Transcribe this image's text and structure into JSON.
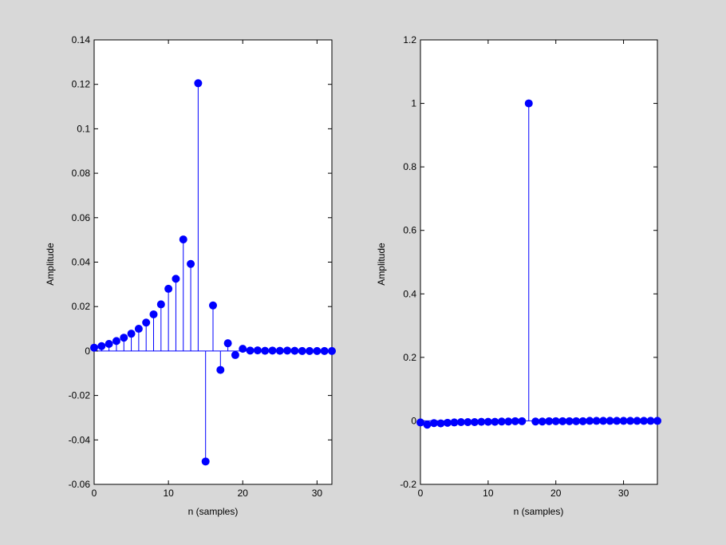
{
  "chart_data": [
    {
      "type": "stem",
      "title": "",
      "xlabel": "n (samples)",
      "ylabel": "Amplitude",
      "xlim": [
        0,
        32
      ],
      "ylim": [
        -0.06,
        0.14
      ],
      "xticks": [
        0,
        10,
        20,
        30
      ],
      "yticks": [
        -0.06,
        -0.04,
        -0.02,
        0,
        0.02,
        0.04,
        0.06,
        0.08,
        0.1,
        0.12,
        0.14
      ],
      "xtick_labels": [
        "0",
        "10",
        "20",
        "30"
      ],
      "ytick_labels": [
        "-0.06",
        "-0.04",
        "-0.02",
        "0",
        "0.02",
        "0.04",
        "0.06",
        "0.08",
        "0.1",
        "0.12",
        "0.14"
      ],
      "x": [
        0,
        1,
        2,
        3,
        4,
        5,
        6,
        7,
        8,
        9,
        10,
        11,
        12,
        13,
        14,
        15,
        16,
        17,
        18,
        19,
        20,
        21,
        22,
        23,
        24,
        25,
        26,
        27,
        28,
        29,
        30,
        31,
        32
      ],
      "y": [
        0.0015,
        0.0022,
        0.0032,
        0.0045,
        0.006,
        0.0078,
        0.01,
        0.0128,
        0.0165,
        0.021,
        0.028,
        0.0325,
        0.0502,
        0.0392,
        0.1205,
        -0.0497,
        0.0205,
        -0.0085,
        0.0035,
        -0.0018,
        0.001,
        0.0002,
        0.0003,
        0.0001,
        0.0002,
        0.0001,
        0.0002,
        0.0001,
        0,
        0,
        0,
        0,
        0
      ],
      "color": "#0000ff",
      "grid": false,
      "box": true
    },
    {
      "type": "stem",
      "title": "",
      "xlabel": "n (samples)",
      "ylabel": "Amplitude",
      "xlim": [
        0,
        35
      ],
      "ylim": [
        -0.2,
        1.2
      ],
      "xticks": [
        0,
        10,
        20,
        30
      ],
      "yticks": [
        -0.2,
        0,
        0.2,
        0.4,
        0.6,
        0.8,
        1,
        1.2
      ],
      "xtick_labels": [
        "0",
        "10",
        "20",
        "30"
      ],
      "ytick_labels": [
        "-0.2",
        "0",
        "0.2",
        "0.4",
        "0.6",
        "0.8",
        "1",
        "1.2"
      ],
      "x": [
        0,
        1,
        2,
        3,
        4,
        5,
        6,
        7,
        8,
        9,
        10,
        11,
        12,
        13,
        14,
        15,
        16,
        17,
        18,
        19,
        20,
        21,
        22,
        23,
        24,
        25,
        26,
        27,
        28,
        29,
        30,
        31,
        32,
        33,
        34,
        35
      ],
      "y": [
        -0.005,
        -0.012,
        -0.007,
        -0.008,
        -0.006,
        -0.005,
        -0.004,
        -0.004,
        -0.004,
        -0.003,
        -0.003,
        -0.003,
        -0.002,
        -0.002,
        -0.001,
        -0.001,
        1.0,
        -0.002,
        -0.002,
        -0.001,
        -0.001,
        -0.001,
        -0.001,
        -0.001,
        -0.001,
        0,
        0,
        0,
        0,
        0,
        0,
        0,
        0,
        0,
        0,
        0
      ],
      "color": "#0000ff",
      "grid": false,
      "box": true
    }
  ]
}
